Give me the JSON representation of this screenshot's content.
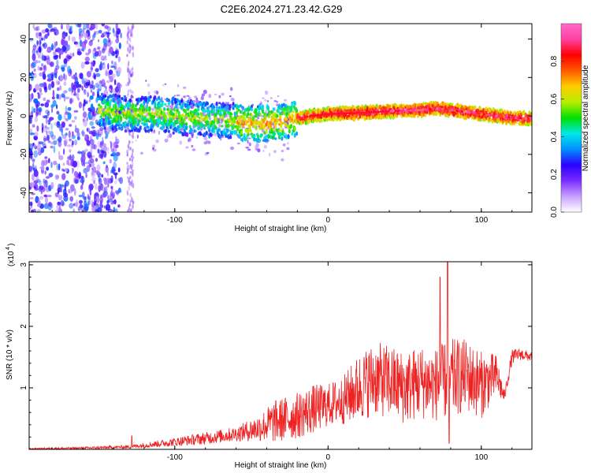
{
  "title": "C2E6.2024.271.23.42.G29",
  "chart_data": [
    {
      "type": "heatmap",
      "xlabel": "Height of straight line (km)",
      "ylabel": "Frequency (Hz)",
      "xlim": [
        -195,
        133
      ],
      "ylim": [
        -50,
        48
      ],
      "x_ticks": [
        -100,
        0,
        100
      ],
      "y_ticks": [
        -40,
        -20,
        0,
        20,
        40
      ],
      "grid": false,
      "colorbar": {
        "label": "Normalized spectral amplitude",
        "range": [
          0,
          1
        ],
        "ticks": [
          "0.0",
          "0.2",
          "0.4",
          "0.6",
          "0.8"
        ],
        "colormap": [
          "#ffffff",
          "#c8a0ff",
          "#7a2cff",
          "#2a00ff",
          "#0090ff",
          "#00e8e8",
          "#00e000",
          "#b8ee00",
          "#ffcc00",
          "#ff5a00",
          "#ff0000",
          "#ff40a0",
          "#ff6acb"
        ]
      },
      "ridge": {
        "x": [
          -150,
          -130,
          -110,
          -90,
          -70,
          -60,
          -50,
          -40,
          -30,
          -20,
          -10,
          0,
          20,
          40,
          60,
          70,
          80,
          100,
          120,
          133
        ],
        "frequency": [
          3,
          1,
          1,
          -1,
          -2,
          -3,
          -4,
          -4,
          -3,
          -1,
          0,
          1,
          1.5,
          2.5,
          3,
          4,
          3,
          1,
          -1,
          -1.5
        ]
      }
    },
    {
      "type": "line",
      "xlabel": "Height of straight line (km)",
      "ylabel": "SNR (10 * v/v)",
      "y_multiplier": "(x10",
      "y_multiplier_exp": "4",
      "xlim": [
        -195,
        133
      ],
      "ylim": [
        0,
        3.05
      ],
      "x_ticks": [
        -100,
        0,
        100
      ],
      "y_ticks": [
        1,
        2,
        3
      ],
      "line_color": "#ee2222",
      "envelope": {
        "x": [
          -195,
          -160,
          -130,
          -100,
          -80,
          -60,
          -45,
          -35,
          -20,
          -10,
          0,
          10,
          20,
          30,
          40,
          50,
          60,
          70,
          80,
          90,
          100,
          110,
          115,
          120,
          125,
          133
        ],
        "mean": [
          0.01,
          0.02,
          0.04,
          0.12,
          0.18,
          0.25,
          0.35,
          0.45,
          0.55,
          0.65,
          0.72,
          0.8,
          1.0,
          1.15,
          1.1,
          1.0,
          1.1,
          1.05,
          1.15,
          1.2,
          1.05,
          1.2,
          0.85,
          1.5,
          1.55,
          1.5
        ],
        "spread": [
          0.01,
          0.02,
          0.03,
          0.07,
          0.1,
          0.12,
          0.22,
          0.35,
          0.38,
          0.4,
          0.35,
          0.4,
          0.55,
          0.6,
          0.6,
          0.6,
          0.6,
          0.6,
          0.65,
          0.6,
          0.55,
          0.35,
          0.1,
          0.12,
          0.1,
          0.08
        ]
      },
      "spikes": [
        {
          "x": -128,
          "y": 0.22
        },
        {
          "x": 78,
          "y": 3.05
        },
        {
          "x": 73,
          "y": 2.8
        },
        {
          "x": 79,
          "y": 0.1
        }
      ]
    }
  ]
}
